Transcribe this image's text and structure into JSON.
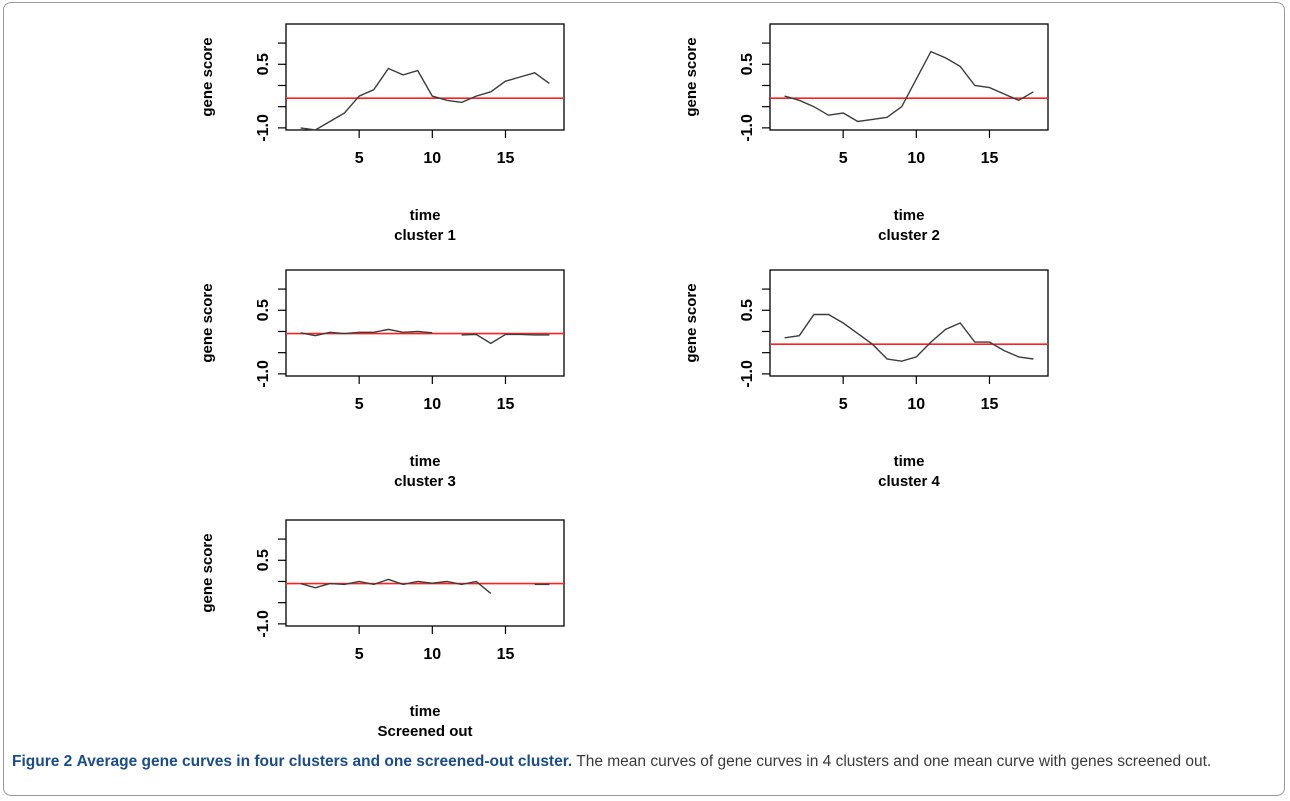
{
  "caption": {
    "label": "Figure 2",
    "title": "Average gene curves in four clusters and one screened-out cluster.",
    "text": "The mean curves of gene curves in 4 clusters and one mean curve with genes screened out."
  },
  "colors": {
    "curve": "#3c3c3c",
    "reference": "#ff2020",
    "frame": "#9a9a9a"
  },
  "chart_data": [
    {
      "type": "line",
      "title": "cluster 1",
      "xlabel": "time",
      "ylabel": "gene score",
      "xlim": [
        0,
        19
      ],
      "ylim": [
        -1.05,
        1.45
      ],
      "xticks": [
        5,
        10,
        15
      ],
      "xtick_labels": [
        "5",
        "10",
        "15"
      ],
      "yticks": [
        -1.0,
        0.5
      ],
      "ytick_labels": [
        "-1.0",
        "0.5"
      ],
      "reference_line": -0.3,
      "x": [
        1,
        2,
        3,
        4,
        5,
        6,
        7,
        8,
        9,
        10,
        11,
        12,
        13,
        14,
        15,
        16,
        17,
        18
      ],
      "segments": [
        [
          1,
          18
        ]
      ],
      "values": [
        -1.0,
        -1.05,
        -0.85,
        -0.65,
        -0.25,
        -0.1,
        0.4,
        0.25,
        0.35,
        -0.25,
        -0.35,
        -0.4,
        -0.25,
        -0.15,
        0.1,
        0.2,
        0.3,
        0.05
      ]
    },
    {
      "type": "line",
      "title": "cluster 2",
      "xlabel": "time",
      "ylabel": "gene score",
      "xlim": [
        0,
        19
      ],
      "ylim": [
        -1.05,
        1.45
      ],
      "xticks": [
        5,
        10,
        15
      ],
      "xtick_labels": [
        "5",
        "10",
        "15"
      ],
      "yticks": [
        -1.0,
        0.5
      ],
      "ytick_labels": [
        "-1.0",
        "0.5"
      ],
      "reference_line": -0.3,
      "x": [
        1,
        2,
        3,
        4,
        5,
        6,
        7,
        8,
        9,
        10,
        11,
        12,
        13,
        14,
        15,
        16,
        17,
        18
      ],
      "segments": [
        [
          1,
          18
        ]
      ],
      "values": [
        -0.25,
        -0.35,
        -0.5,
        -0.7,
        -0.65,
        -0.85,
        -0.8,
        -0.75,
        -0.5,
        0.15,
        0.8,
        0.65,
        0.45,
        0.0,
        -0.05,
        -0.2,
        -0.35,
        -0.15
      ]
    },
    {
      "type": "line",
      "title": "cluster 3",
      "xlabel": "time",
      "ylabel": "gene score",
      "xlim": [
        0,
        19
      ],
      "ylim": [
        -1.05,
        1.45
      ],
      "xticks": [
        5,
        10,
        15
      ],
      "xtick_labels": [
        "5",
        "10",
        "15"
      ],
      "yticks": [
        -1.0,
        0.5
      ],
      "ytick_labels": [
        "-1.0",
        "0.5"
      ],
      "reference_line": -0.05,
      "x": [
        1,
        2,
        3,
        4,
        5,
        6,
        7,
        8,
        9,
        10,
        11,
        12,
        13,
        14,
        15,
        16,
        17,
        18
      ],
      "segments": [
        [
          1,
          10
        ],
        [
          12,
          18
        ]
      ],
      "values": [
        -0.03,
        -0.1,
        -0.02,
        -0.05,
        -0.02,
        -0.02,
        0.05,
        -0.02,
        0.0,
        -0.03,
        null,
        -0.08,
        -0.07,
        -0.28,
        -0.07,
        -0.07,
        -0.08,
        -0.08
      ]
    },
    {
      "type": "line",
      "title": "cluster 4",
      "xlabel": "time",
      "ylabel": "gene score",
      "xlim": [
        0,
        19
      ],
      "ylim": [
        -1.05,
        1.45
      ],
      "xticks": [
        5,
        10,
        15
      ],
      "xtick_labels": [
        "5",
        "10",
        "15"
      ],
      "yticks": [
        -1.0,
        0.5
      ],
      "ytick_labels": [
        "-1.0",
        "0.5"
      ],
      "reference_line": -0.3,
      "x": [
        1,
        2,
        3,
        4,
        5,
        6,
        7,
        8,
        9,
        10,
        11,
        12,
        13,
        14,
        15,
        16,
        17,
        18
      ],
      "segments": [
        [
          1,
          18
        ]
      ],
      "values": [
        -0.15,
        -0.1,
        0.4,
        0.4,
        0.2,
        -0.05,
        -0.3,
        -0.65,
        -0.7,
        -0.6,
        -0.25,
        0.05,
        0.2,
        -0.25,
        -0.25,
        -0.45,
        -0.6,
        -0.65
      ]
    },
    {
      "type": "line",
      "title": "Screened out",
      "xlabel": "time",
      "ylabel": "gene score",
      "xlim": [
        0,
        19
      ],
      "ylim": [
        -1.05,
        1.45
      ],
      "xticks": [
        5,
        10,
        15
      ],
      "xtick_labels": [
        "5",
        "10",
        "15"
      ],
      "yticks": [
        -1.0,
        0.5
      ],
      "ytick_labels": [
        "-1.0",
        "0.5"
      ],
      "reference_line": -0.05,
      "x": [
        1,
        2,
        3,
        4,
        5,
        6,
        7,
        8,
        9,
        10,
        11,
        12,
        13,
        14,
        15,
        16,
        17,
        18
      ],
      "segments": [
        [
          1,
          14
        ],
        [
          17,
          18
        ]
      ],
      "values": [
        -0.05,
        -0.15,
        -0.05,
        -0.07,
        0.0,
        -0.07,
        0.05,
        -0.07,
        0.0,
        -0.04,
        0.0,
        -0.07,
        0.0,
        -0.28,
        null,
        null,
        -0.07,
        -0.07
      ]
    }
  ]
}
